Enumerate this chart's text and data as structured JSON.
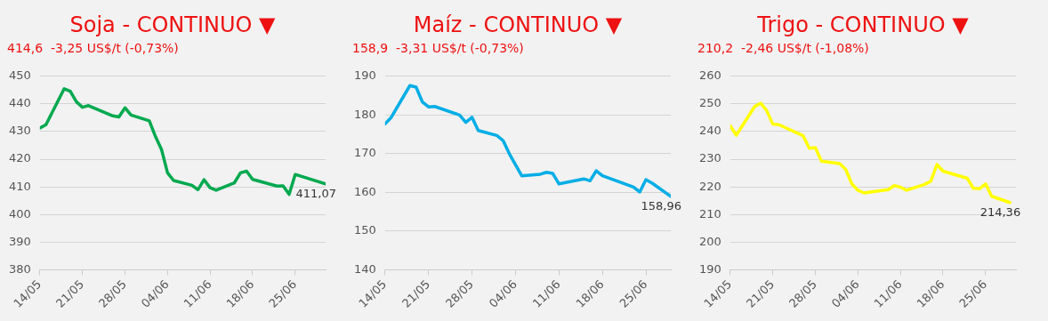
{
  "chart_data": [
    {
      "type": "line",
      "title": "Soja - CONTINUO ▼",
      "subtitle": "414,6  -3,25 US$/t (-0,73%)",
      "x": [
        "--05-14",
        "--05-15",
        "--05-18",
        "--05-19",
        "--05-20",
        "--05-21",
        "--05-22",
        "--05-26",
        "--05-27",
        "--05-28",
        "--05-29",
        "--06-01",
        "--06-02",
        "--06-03",
        "--06-04",
        "--06-05",
        "--06-08",
        "--06-09",
        "--06-10",
        "--06-11",
        "--06-12",
        "--06-15",
        "--06-16",
        "--06-17",
        "--06-18",
        "--06-22",
        "--06-23",
        "--06-24",
        "--06-25",
        "--06-30"
      ],
      "series": [
        {
          "color": "#00a94f",
          "values": [
            431.3,
            432.5,
            445.5,
            444.6,
            440.8,
            438.8,
            439.4,
            435.7,
            435.3,
            438.6,
            436,
            433.9,
            428.3,
            423.6,
            415.1,
            412.3,
            410.6,
            409,
            412.6,
            409.7,
            408.8,
            411.5,
            415.1,
            415.7,
            412.7,
            410.3,
            410.4,
            407.3,
            414.5,
            411.07
          ]
        }
      ],
      "xlim": [
        "--05-14",
        "--06-30"
      ],
      "xticks": [
        {
          "value": "--05-14",
          "label": "14/05"
        },
        {
          "value": "--05-21",
          "label": "21/05"
        },
        {
          "value": "--05-28",
          "label": "28/05"
        },
        {
          "value": "--06-04",
          "label": "04/06"
        },
        {
          "value": "--06-11",
          "label": "11/06"
        },
        {
          "value": "--06-18",
          "label": "18/06"
        },
        {
          "value": "--06-25",
          "label": "25/06"
        }
      ],
      "ylim": [
        380,
        450
      ],
      "yticks": [
        380,
        390,
        400,
        410,
        420,
        430,
        440,
        450
      ],
      "grid": "y",
      "legend": false,
      "marker": "none",
      "line_style": "solid",
      "annotations": [
        {
          "text": "411,07",
          "x": "--06-30",
          "y": 411.07
        }
      ]
    },
    {
      "type": "line",
      "title": "Maíz - CONTINUO ▼",
      "subtitle": "158,9  -3,31 US$/t (-0,73%)",
      "x": [
        "--05-14",
        "--05-15",
        "--05-18",
        "--05-19",
        "--05-20",
        "--05-21",
        "--05-22",
        "--05-26",
        "--05-27",
        "--05-28",
        "--05-29",
        "--06-01",
        "--06-02",
        "--06-03",
        "--06-05",
        "--06-08",
        "--06-09",
        "--06-10",
        "--06-11",
        "--06-15",
        "--06-16",
        "--06-17",
        "--06-18",
        "--06-23",
        "--06-24",
        "--06-25",
        "--06-26",
        "--06-29"
      ],
      "series": [
        {
          "color": "#00aee6",
          "values": [
            177.7,
            179.4,
            187.6,
            187.2,
            183.4,
            182.1,
            182.2,
            180,
            178.1,
            179.4,
            176,
            174.7,
            173.4,
            170,
            164.3,
            164.7,
            165.2,
            164.9,
            162.2,
            163.5,
            163,
            165.6,
            164.3,
            161.4,
            160.1,
            163.3,
            162.4,
            158.96
          ]
        }
      ],
      "xlim": [
        "--05-14",
        "--06-29"
      ],
      "xticks": [
        {
          "value": "--05-14",
          "label": "14/05"
        },
        {
          "value": "--05-21",
          "label": "21/05"
        },
        {
          "value": "--05-28",
          "label": "28/05"
        },
        {
          "value": "--06-04",
          "label": "04/06"
        },
        {
          "value": "--06-11",
          "label": "11/06"
        },
        {
          "value": "--06-18",
          "label": "18/06"
        },
        {
          "value": "--06-25",
          "label": "25/06"
        }
      ],
      "ylim": [
        140,
        190
      ],
      "yticks": [
        140,
        150,
        160,
        170,
        180,
        190
      ],
      "grid": "y",
      "legend": false,
      "marker": "none",
      "line_style": "solid",
      "annotations": [
        {
          "text": "158,96",
          "x": "--06-29",
          "y": 158.96
        }
      ]
    },
    {
      "type": "line",
      "title": "Trigo - CONTINUO ▼",
      "subtitle": "210,2  -2,46 US$/t (-1,08%)",
      "x": [
        "--05-14",
        "--05-15",
        "--05-18",
        "--05-19",
        "--05-20",
        "--05-21",
        "--05-22",
        "--05-26",
        "--05-27",
        "--05-28",
        "--05-29",
        "--06-01",
        "--06-02",
        "--06-03",
        "--06-04",
        "--06-05",
        "--06-09",
        "--06-10",
        "--06-11",
        "--06-12",
        "--06-15",
        "--06-16",
        "--06-17",
        "--06-18",
        "--06-22",
        "--06-23",
        "--06-24",
        "--06-25",
        "--06-26",
        "--06-29"
      ],
      "series": [
        {
          "color": "#ffff00",
          "values": [
            242.1,
            238.7,
            249,
            250.3,
            247.6,
            242.7,
            242.5,
            238.5,
            234,
            234.2,
            229.3,
            228.4,
            226.3,
            221.1,
            218.8,
            217.8,
            219,
            220.5,
            219.9,
            218.8,
            220.9,
            222.1,
            228.1,
            225.7,
            223.1,
            219.5,
            219.3,
            221.1,
            216.6,
            214.36
          ]
        }
      ],
      "xlim": [
        "--05-14",
        "--06-30"
      ],
      "xticks": [
        {
          "value": "--05-14",
          "label": "14/05"
        },
        {
          "value": "--05-21",
          "label": "21/05"
        },
        {
          "value": "--05-28",
          "label": "28/05"
        },
        {
          "value": "--06-04",
          "label": "04/06"
        },
        {
          "value": "--06-11",
          "label": "11/06"
        },
        {
          "value": "--06-18",
          "label": "18/06"
        },
        {
          "value": "--06-25",
          "label": "25/06"
        }
      ],
      "ylim": [
        190,
        260
      ],
      "yticks": [
        190,
        200,
        210,
        220,
        230,
        240,
        250,
        260
      ],
      "grid": "y",
      "legend": false,
      "marker": "none",
      "line_style": "solid",
      "annotations": [
        {
          "text": "214,36",
          "x": "--06-29",
          "y": 214.36
        }
      ]
    }
  ]
}
